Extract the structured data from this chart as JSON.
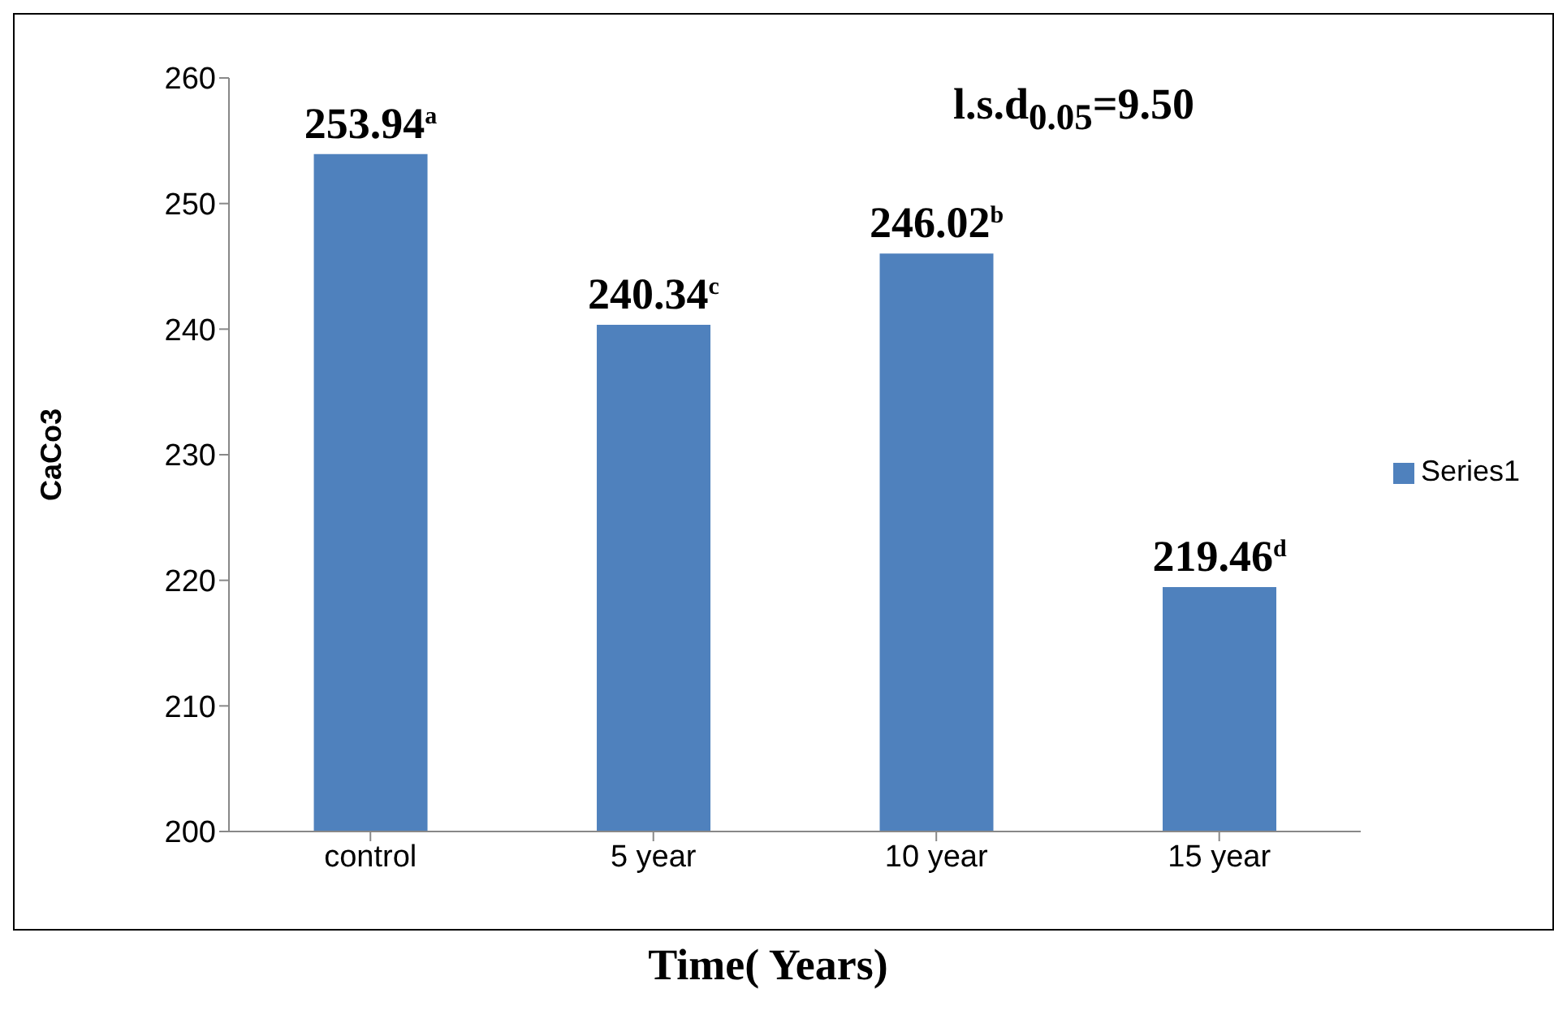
{
  "chart_data": {
    "type": "bar",
    "xlabel": "Time( Years)",
    "ylabel": "CaCo3",
    "categories": [
      "control",
      "5 year",
      "10 year",
      "15 year"
    ],
    "series": [
      {
        "name": "Series1",
        "color": "#4f81bd",
        "values": [
          253.94,
          240.34,
          246.02,
          219.46
        ],
        "value_labels": [
          "253.94$^{a}$",
          "240.34$^{c}$",
          "246.02$^{b}$",
          "219.46$^{d}$"
        ]
      }
    ],
    "ylim": [
      200,
      260
    ],
    "yticks": [
      200,
      210,
      220,
      230,
      240,
      250,
      260
    ],
    "legend": "right",
    "annotations": [
      "l.s.d$_{0.05}$=9.50"
    ]
  }
}
